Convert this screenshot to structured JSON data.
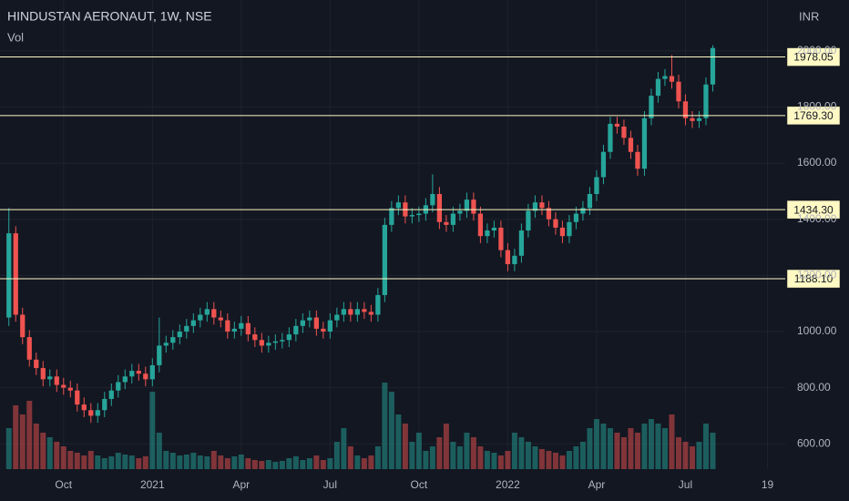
{
  "chart_data": {
    "type": "candlestick",
    "title": "HINDUSTAN AERONAUT, 1W, NSE",
    "volume_label": "Vol",
    "currency": "INR",
    "up_color": "#26a69a",
    "down_color": "#ef5350",
    "grid": true,
    "xlim": [
      -1.3,
      113.6
    ],
    "ylim": [
      510,
      2181
    ],
    "vlim": [
      0,
      100
    ],
    "xticks": [
      {
        "value": 8,
        "label": "Oct"
      },
      {
        "value": 21,
        "label": "2021"
      },
      {
        "value": 34,
        "label": "Apr"
      },
      {
        "value": 47,
        "label": "Jul"
      },
      {
        "value": 60,
        "label": "Oct"
      },
      {
        "value": 73,
        "label": "2022"
      },
      {
        "value": 86,
        "label": "Apr"
      },
      {
        "value": 99,
        "label": "Jul"
      },
      {
        "value": 111,
        "label": "19"
      }
    ],
    "yticks": [
      {
        "value": 600,
        "label": "600.00"
      },
      {
        "value": 800,
        "label": "800.00"
      },
      {
        "value": 1000,
        "label": "1000.00"
      },
      {
        "value": 1200,
        "label": "1200.00"
      },
      {
        "value": 1400,
        "label": "1400.00"
      },
      {
        "value": 1600,
        "label": "1600.00"
      },
      {
        "value": 1800,
        "label": "1800.00"
      },
      {
        "value": 2000,
        "label": "2000.00"
      }
    ],
    "levels": [
      {
        "value": 1978.05,
        "label": "1978.05"
      },
      {
        "value": 1769.3,
        "label": "1769.30"
      },
      {
        "value": 1434.3,
        "label": "1434.30"
      },
      {
        "value": 1188.1,
        "label": "1188.10"
      }
    ],
    "open": [
      1050,
      1350,
      1060,
      980,
      900,
      870,
      830,
      840,
      810,
      800,
      790,
      740,
      720,
      700,
      720,
      760,
      790,
      820,
      840,
      860,
      850,
      830,
      880,
      950,
      960,
      980,
      1000,
      1020,
      1040,
      1060,
      1080,
      1050,
      1040,
      1000,
      1010,
      1030,
      990,
      970,
      950,
      960,
      965,
      970,
      990,
      1020,
      1040,
      1050,
      1010,
      1000,
      1040,
      1060,
      1080,
      1060,
      1080,
      1070,
      1060,
      1130,
      1380,
      1440,
      1460,
      1410,
      1415,
      1420,
      1450,
      1490,
      1390,
      1380,
      1420,
      1430,
      1470,
      1420,
      1340,
      1360,
      1370,
      1290,
      1240,
      1270,
      1360,
      1430,
      1460,
      1440,
      1400,
      1370,
      1340,
      1390,
      1420,
      1440,
      1490,
      1550,
      1640,
      1740,
      1730,
      1690,
      1640,
      1580,
      1760,
      1840,
      1900,
      1910,
      1890,
      1820,
      1760,
      1750,
      1760,
      1880
    ],
    "high": [
      1440,
      1375,
      1085,
      1005,
      925,
      895,
      865,
      865,
      835,
      825,
      815,
      765,
      745,
      745,
      785,
      815,
      845,
      865,
      885,
      885,
      875,
      905,
      1050,
      985,
      1005,
      1025,
      1045,
      1065,
      1085,
      1105,
      1105,
      1075,
      1065,
      1035,
      1055,
      1055,
      1015,
      995,
      985,
      990,
      995,
      1015,
      1045,
      1065,
      1075,
      1075,
      1035,
      1065,
      1085,
      1105,
      1105,
      1105,
      1105,
      1095,
      1155,
      1405,
      1465,
      1485,
      1485,
      1440,
      1445,
      1475,
      1560,
      1515,
      1415,
      1445,
      1455,
      1495,
      1495,
      1445,
      1385,
      1395,
      1395,
      1315,
      1295,
      1385,
      1455,
      1485,
      1485,
      1465,
      1425,
      1395,
      1415,
      1445,
      1465,
      1515,
      1575,
      1665,
      1765,
      1765,
      1755,
      1715,
      1665,
      1785,
      1865,
      1925,
      1935,
      1985,
      1915,
      1845,
      1785,
      1785,
      1905,
      2020
    ],
    "low": [
      1020,
      1035,
      955,
      875,
      845,
      805,
      805,
      785,
      775,
      765,
      715,
      695,
      675,
      675,
      695,
      735,
      765,
      795,
      815,
      825,
      805,
      805,
      855,
      925,
      935,
      955,
      975,
      995,
      1015,
      1035,
      1025,
      1015,
      975,
      975,
      985,
      965,
      945,
      925,
      925,
      935,
      940,
      945,
      965,
      995,
      1015,
      985,
      975,
      975,
      1015,
      1035,
      1035,
      1035,
      1045,
      1035,
      1035,
      1105,
      1355,
      1415,
      1385,
      1385,
      1390,
      1395,
      1425,
      1365,
      1355,
      1355,
      1395,
      1405,
      1395,
      1315,
      1315,
      1335,
      1265,
      1215,
      1215,
      1245,
      1335,
      1405,
      1415,
      1375,
      1345,
      1315,
      1315,
      1365,
      1395,
      1415,
      1465,
      1525,
      1615,
      1705,
      1665,
      1615,
      1555,
      1555,
      1735,
      1815,
      1875,
      1865,
      1795,
      1735,
      1725,
      1725,
      1735,
      1855
    ],
    "close": [
      1350,
      1060,
      980,
      900,
      870,
      830,
      840,
      810,
      800,
      790,
      740,
      720,
      700,
      720,
      760,
      790,
      820,
      840,
      860,
      850,
      830,
      880,
      950,
      960,
      980,
      1000,
      1020,
      1040,
      1060,
      1080,
      1050,
      1040,
      1000,
      1010,
      1030,
      990,
      970,
      950,
      960,
      965,
      970,
      990,
      1020,
      1040,
      1050,
      1010,
      1000,
      1040,
      1060,
      1080,
      1060,
      1080,
      1070,
      1060,
      1130,
      1380,
      1440,
      1460,
      1410,
      1415,
      1420,
      1450,
      1490,
      1390,
      1380,
      1420,
      1430,
      1470,
      1420,
      1340,
      1360,
      1370,
      1290,
      1240,
      1270,
      1360,
      1430,
      1460,
      1440,
      1400,
      1370,
      1340,
      1390,
      1420,
      1440,
      1490,
      1550,
      1640,
      1740,
      1730,
      1690,
      1640,
      1580,
      1760,
      1840,
      1900,
      1910,
      1890,
      1820,
      1760,
      1750,
      1760,
      1880,
      2010
    ],
    "volume": [
      45,
      70,
      60,
      75,
      50,
      40,
      35,
      30,
      25,
      20,
      18,
      15,
      20,
      15,
      12,
      14,
      18,
      16,
      15,
      12,
      14,
      85,
      40,
      20,
      18,
      15,
      16,
      18,
      15,
      14,
      20,
      15,
      12,
      14,
      16,
      12,
      10,
      9,
      10,
      8,
      9,
      12,
      14,
      10,
      12,
      15,
      10,
      12,
      30,
      45,
      25,
      15,
      12,
      15,
      25,
      95,
      85,
      60,
      50,
      30,
      40,
      20,
      25,
      35,
      50,
      30,
      25,
      40,
      35,
      25,
      20,
      18,
      15,
      20,
      40,
      35,
      30,
      25,
      22,
      20,
      18,
      15,
      20,
      25,
      30,
      45,
      55,
      50,
      45,
      40,
      35,
      45,
      40,
      50,
      55,
      50,
      45,
      60,
      35,
      30,
      25,
      30,
      50,
      40
    ]
  }
}
